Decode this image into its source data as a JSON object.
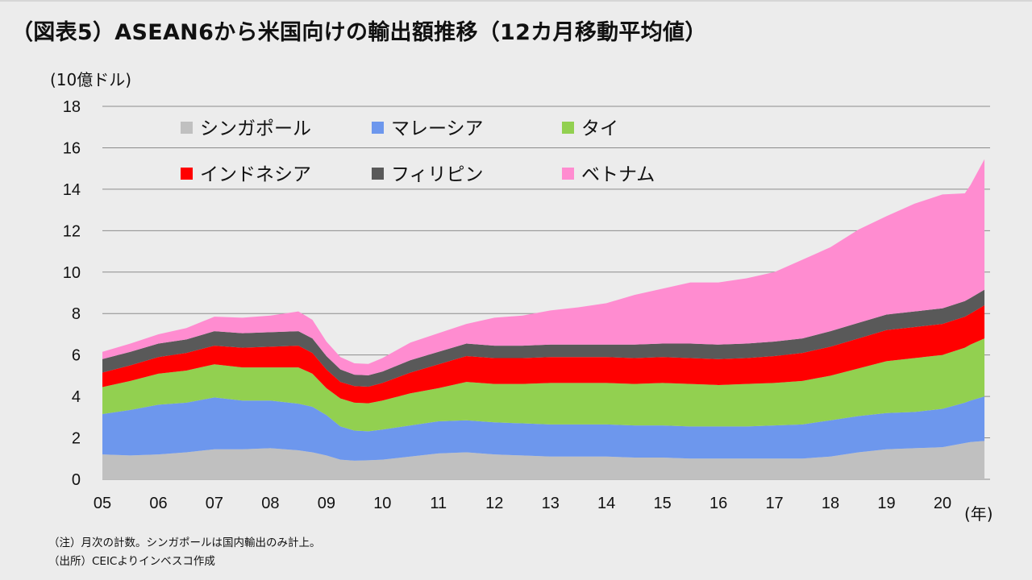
{
  "title": "（図表5）ASEAN6から米国向けの輸出額推移（12カ月移動平均値）",
  "notes": {
    "note": "（注）月次の計数。シンガポールは国内輸出のみ計上。",
    "source": "（出所）CEICよりインベスコ作成"
  },
  "chart_data": {
    "type": "area",
    "stacked": true,
    "unit_label": "(10億ドル)",
    "x_unit_label": "(年)",
    "ylim": [
      0,
      18
    ],
    "yticks": [
      "0",
      "2",
      "4",
      "6",
      "8",
      "10",
      "12",
      "14",
      "16",
      "18"
    ],
    "xticks": [
      "05",
      "06",
      "07",
      "08",
      "09",
      "10",
      "11",
      "12",
      "13",
      "14",
      "15",
      "16",
      "17",
      "18",
      "19",
      "20"
    ],
    "grid": true,
    "legend_position": "top-left",
    "x": [
      2005.0,
      2005.5,
      2006.0,
      2006.5,
      2007.0,
      2007.5,
      2008.0,
      2008.5,
      2008.75,
      2009.0,
      2009.25,
      2009.5,
      2009.75,
      2010.0,
      2010.5,
      2011.0,
      2011.5,
      2012.0,
      2012.5,
      2013.0,
      2013.5,
      2014.0,
      2014.5,
      2015.0,
      2015.5,
      2016.0,
      2016.5,
      2017.0,
      2017.5,
      2018.0,
      2018.5,
      2019.0,
      2019.5,
      2020.0,
      2020.4,
      2020.5,
      2020.75
    ],
    "series": [
      {
        "name": "シンガポール",
        "color": "#c0c0c0",
        "values": [
          1.2,
          1.15,
          1.2,
          1.3,
          1.45,
          1.45,
          1.5,
          1.4,
          1.3,
          1.15,
          0.95,
          0.9,
          0.92,
          0.95,
          1.1,
          1.25,
          1.3,
          1.2,
          1.15,
          1.1,
          1.1,
          1.1,
          1.05,
          1.05,
          1.0,
          1.0,
          1.0,
          1.0,
          1.0,
          1.1,
          1.3,
          1.45,
          1.5,
          1.55,
          1.75,
          1.8,
          1.85
        ]
      },
      {
        "name": "マレーシア",
        "color": "#6d97ed",
        "values": [
          1.95,
          2.2,
          2.4,
          2.4,
          2.5,
          2.35,
          2.3,
          2.25,
          2.2,
          1.95,
          1.6,
          1.45,
          1.4,
          1.45,
          1.5,
          1.55,
          1.55,
          1.55,
          1.55,
          1.55,
          1.55,
          1.55,
          1.55,
          1.55,
          1.55,
          1.55,
          1.55,
          1.6,
          1.65,
          1.75,
          1.75,
          1.75,
          1.75,
          1.85,
          1.95,
          2.0,
          2.15
        ]
      },
      {
        "name": "タイ",
        "color": "#92d050",
        "values": [
          1.3,
          1.4,
          1.5,
          1.55,
          1.6,
          1.6,
          1.6,
          1.75,
          1.6,
          1.3,
          1.35,
          1.35,
          1.35,
          1.4,
          1.55,
          1.6,
          1.85,
          1.85,
          1.9,
          2.0,
          2.0,
          2.0,
          2.0,
          2.05,
          2.05,
          2.0,
          2.05,
          2.05,
          2.1,
          2.15,
          2.3,
          2.5,
          2.6,
          2.6,
          2.65,
          2.7,
          2.8
        ]
      },
      {
        "name": "インドネシア",
        "color": "#ff0000",
        "values": [
          0.7,
          0.75,
          0.8,
          0.85,
          0.9,
          0.95,
          1.0,
          1.05,
          1.0,
          0.9,
          0.8,
          0.8,
          0.8,
          0.85,
          1.0,
          1.15,
          1.25,
          1.25,
          1.25,
          1.25,
          1.25,
          1.25,
          1.25,
          1.25,
          1.25,
          1.25,
          1.25,
          1.3,
          1.35,
          1.4,
          1.45,
          1.5,
          1.5,
          1.5,
          1.5,
          1.5,
          1.6
        ]
      },
      {
        "name": "フィリピン",
        "color": "#595959",
        "values": [
          0.65,
          0.65,
          0.65,
          0.65,
          0.7,
          0.7,
          0.7,
          0.7,
          0.7,
          0.65,
          0.6,
          0.55,
          0.55,
          0.55,
          0.6,
          0.6,
          0.6,
          0.6,
          0.6,
          0.6,
          0.6,
          0.6,
          0.65,
          0.65,
          0.7,
          0.7,
          0.7,
          0.7,
          0.7,
          0.75,
          0.75,
          0.75,
          0.75,
          0.75,
          0.75,
          0.75,
          0.75
        ]
      },
      {
        "name": "ベトナム",
        "color": "#ff8cd0",
        "values": [
          0.35,
          0.4,
          0.45,
          0.55,
          0.7,
          0.75,
          0.8,
          0.95,
          0.9,
          0.7,
          0.6,
          0.55,
          0.55,
          0.65,
          0.85,
          0.9,
          0.95,
          1.35,
          1.45,
          1.65,
          1.8,
          2.0,
          2.4,
          2.65,
          2.95,
          3.0,
          3.15,
          3.35,
          3.8,
          4.05,
          4.5,
          4.75,
          5.2,
          5.5,
          5.2,
          5.45,
          6.3
        ]
      }
    ]
  }
}
